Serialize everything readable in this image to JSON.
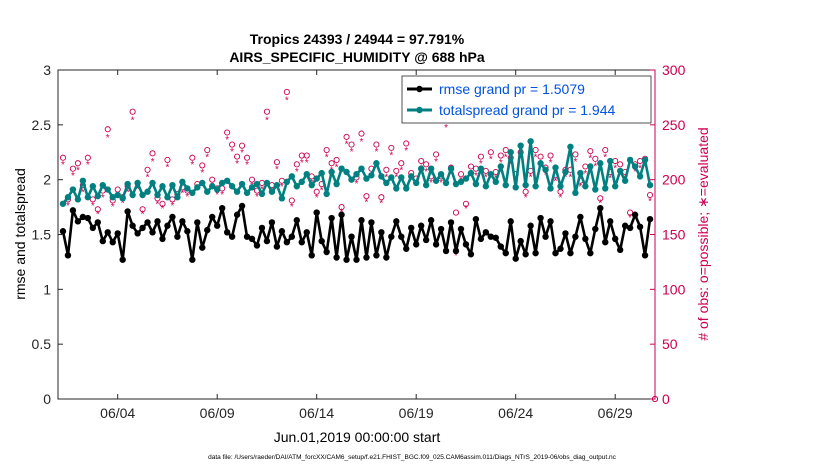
{
  "chart_data": {
    "type": "line",
    "title": "Tropics 24393 / 24944 = 97.791%",
    "subtitle": "AIRS_SPECIFIC_HUMIDITY @ 688 hPa",
    "xlabel": "Jun.01,2019 00:00:00 start",
    "ylabel": "rmse and totalspread",
    "y2label": "# of obs: o=possible; ∗=evaluated",
    "footer": "data file: /Users/raeder/DAI/ATM_forcXX/CAM6_setup/f.e21.FHIST_BGC.f09_025.CAM6assim.011/Diags_NTrS_2019-06/obs_diag_output.nc",
    "xlim": [
      0,
      60
    ],
    "ylim": [
      0,
      3
    ],
    "y2lim": [
      0,
      300
    ],
    "xticks": [
      {
        "x": 6,
        "label": "06/04"
      },
      {
        "x": 16,
        "label": "06/09"
      },
      {
        "x": 26,
        "label": "06/14"
      },
      {
        "x": 36,
        "label": "06/19"
      },
      {
        "x": 46,
        "label": "06/24"
      },
      {
        "x": 56,
        "label": "06/29"
      }
    ],
    "yticks": [
      {
        "v": 0,
        "label": "0"
      },
      {
        "v": 0.5,
        "label": "0.5"
      },
      {
        "v": 1,
        "label": "1"
      },
      {
        "v": 1.5,
        "label": "1.5"
      },
      {
        "v": 2,
        "label": "2"
      },
      {
        "v": 2.5,
        "label": "2.5"
      },
      {
        "v": 3,
        "label": "3"
      }
    ],
    "y2ticks": [
      {
        "v": 0,
        "label": "0"
      },
      {
        "v": 50,
        "label": "50"
      },
      {
        "v": 100,
        "label": "100"
      },
      {
        "v": 150,
        "label": "150"
      },
      {
        "v": 200,
        "label": "200"
      },
      {
        "v": 250,
        "label": "250"
      },
      {
        "v": 300,
        "label": "300"
      }
    ],
    "legend_position": "top-right",
    "colors": {
      "rmse": "#000000",
      "spread": "#008080",
      "obs": "#cc0052",
      "legend_text": "#0052e0"
    },
    "x": [
      0.5,
      1,
      1.5,
      2,
      2.5,
      3,
      3.5,
      4,
      4.5,
      5,
      5.5,
      6,
      6.5,
      7,
      7.5,
      8,
      8.5,
      9,
      9.5,
      10,
      10.5,
      11,
      11.5,
      12,
      12.5,
      13,
      13.5,
      14,
      14.5,
      15,
      15.5,
      16,
      16.5,
      17,
      17.5,
      18,
      18.5,
      19,
      19.5,
      20,
      20.5,
      21,
      21.5,
      22,
      22.5,
      23,
      23.5,
      24,
      24.5,
      25,
      25.5,
      26,
      26.5,
      27,
      27.5,
      28,
      28.5,
      29,
      29.5,
      30,
      30.5,
      31,
      31.5,
      32,
      32.5,
      33,
      33.5,
      34,
      34.5,
      35,
      35.5,
      36,
      36.5,
      37,
      37.5,
      38,
      38.5,
      39,
      39.5,
      40,
      40.5,
      41,
      41.5,
      42,
      42.5,
      43,
      43.5,
      44,
      44.5,
      45,
      45.5,
      46,
      46.5,
      47,
      47.5,
      48,
      48.5,
      49,
      49.5,
      50,
      50.5,
      51,
      51.5,
      52,
      52.5,
      53,
      53.5,
      54,
      54.5,
      55,
      55.5,
      56,
      56.5,
      57,
      57.5,
      58,
      58.5,
      59,
      59.5
    ],
    "series": [
      {
        "name": "rmse grand pr = 1.5079",
        "values": [
          1.53,
          1.31,
          1.72,
          1.62,
          1.66,
          1.65,
          1.56,
          1.61,
          1.44,
          1.52,
          1.43,
          1.51,
          1.27,
          1.71,
          1.58,
          1.51,
          1.56,
          1.61,
          1.52,
          1.62,
          1.46,
          1.58,
          1.66,
          1.48,
          1.62,
          1.53,
          1.27,
          1.61,
          1.38,
          1.54,
          1.66,
          1.58,
          1.74,
          1.52,
          1.48,
          1.68,
          1.76,
          1.48,
          1.46,
          1.4,
          1.56,
          1.44,
          1.61,
          1.39,
          1.53,
          1.43,
          1.48,
          1.63,
          1.43,
          1.52,
          1.31,
          1.7,
          1.44,
          1.34,
          1.65,
          1.29,
          1.68,
          1.27,
          1.48,
          1.27,
          1.63,
          1.29,
          1.61,
          1.31,
          1.52,
          1.29,
          1.48,
          1.62,
          1.48,
          1.37,
          1.56,
          1.41,
          1.58,
          1.45,
          1.63,
          1.41,
          1.55,
          1.35,
          1.61,
          1.35,
          1.55,
          1.41,
          1.32,
          1.64,
          1.46,
          1.52,
          1.48,
          1.47,
          1.39,
          1.33,
          1.62,
          1.28,
          1.44,
          1.32,
          1.58,
          1.33,
          1.65,
          1.48,
          1.62,
          1.33,
          1.37,
          1.51,
          1.33,
          1.48,
          1.66,
          1.46,
          1.33,
          1.55,
          1.74,
          1.43,
          1.62,
          1.46,
          1.36,
          1.58,
          1.56,
          1.68,
          1.57,
          1.31,
          1.64
        ]
      },
      {
        "name": "totalspread grand pr = 1.944",
        "values": [
          1.78,
          1.84,
          1.91,
          1.82,
          1.99,
          1.84,
          1.94,
          1.85,
          1.95,
          1.91,
          1.84,
          1.86,
          1.83,
          1.96,
          1.86,
          1.97,
          1.86,
          1.89,
          1.97,
          1.86,
          1.94,
          1.84,
          1.95,
          1.84,
          1.98,
          1.92,
          1.88,
          1.93,
          1.97,
          1.89,
          1.94,
          1.91,
          1.97,
          1.99,
          1.94,
          1.89,
          1.96,
          1.88,
          1.93,
          1.96,
          1.87,
          1.97,
          1.89,
          1.95,
          1.83,
          1.98,
          2.03,
          1.94,
          1.98,
          2.05,
          1.95,
          2.01,
          2.06,
          1.87,
          2.07,
          1.96,
          2.1,
          2.07,
          2.0,
          2.05,
          2.1,
          2.01,
          2.04,
          2.15,
          2.03,
          1.97,
          2.02,
          1.92,
          2.02,
          1.92,
          2.03,
          1.97,
          2.1,
          1.95,
          2.1,
          1.99,
          2.05,
          1.97,
          2.1,
          1.96,
          1.98,
          2.01,
          2.06,
          1.96,
          2.1,
          1.94,
          2.05,
          1.98,
          2.12,
          1.95,
          2.25,
          1.93,
          2.31,
          1.95,
          2.35,
          1.94,
          2.15,
          2.09,
          1.92,
          2.11,
          1.94,
          2.07,
          2.3,
          1.88,
          2.06,
          1.94,
          2.12,
          1.91,
          2.15,
          1.92,
          2.17,
          1.94,
          2.08,
          1.99,
          2.18,
          2.12,
          2.03,
          2.18,
          1.95
        ]
      },
      {
        "name": "obs possible",
        "values": [
          220,
          182,
          210,
          215,
          195,
          220,
          182,
          173,
          190,
          246,
          181,
          191,
          184,
          194,
          262,
          197,
          173,
          209,
          224,
          183,
          178,
          218,
          182,
          187,
          193,
          190,
          220,
          196,
          213,
          227,
          200,
          192,
          192,
          243,
          232,
          221,
          231,
          220,
          200,
          190,
          197,
          262,
          195,
          216,
          199,
          280,
          181,
          214,
          222,
          222,
          203,
          189,
          196,
          227,
          215,
          218,
          175,
          239,
          232,
          202,
          242,
          185,
          210,
          232,
          184,
          209,
          229,
          208,
          215,
          233,
          206,
          201,
          217,
          214,
          203,
          223,
          203,
          255,
          211,
          170,
          205,
          178,
          212,
          210,
          221,
          208,
          225,
          207,
          222,
          227,
          220,
          205,
          225,
          189,
          208,
          227,
          221,
          211,
          222,
          204,
          189,
          209,
          209,
          223,
          199,
          212,
          226,
          219,
          183,
          227,
          207,
          217,
          214,
          207,
          170,
          214,
          217,
          219,
          186
        ]
      },
      {
        "name": "obs evaluated",
        "values": [
          215,
          178,
          205,
          210,
          190,
          215,
          178,
          170,
          185,
          240,
          177,
          187,
          180,
          190,
          256,
          193,
          170,
          204,
          218,
          179,
          175,
          213,
          178,
          183,
          189,
          186,
          215,
          192,
          208,
          222,
          196,
          188,
          188,
          238,
          227,
          216,
          226,
          215,
          196,
          186,
          193,
          256,
          191,
          211,
          195,
          274,
          177,
          209,
          217,
          217,
          199,
          185,
          192,
          222,
          210,
          213,
          172,
          234,
          227,
          198,
          236,
          181,
          205,
          227,
          180,
          204,
          224,
          204,
          210,
          228,
          202,
          197,
          212,
          209,
          199,
          218,
          199,
          249,
          206,
          132,
          201,
          175,
          207,
          205,
          216,
          204,
          220,
          203,
          217,
          222,
          215,
          201,
          220,
          185,
          204,
          222,
          216,
          206,
          217,
          200,
          185,
          204,
          204,
          218,
          195,
          207,
          221,
          214,
          180,
          222,
          203,
          212,
          209,
          203,
          167,
          209,
          212,
          214,
          182
        ]
      }
    ]
  }
}
